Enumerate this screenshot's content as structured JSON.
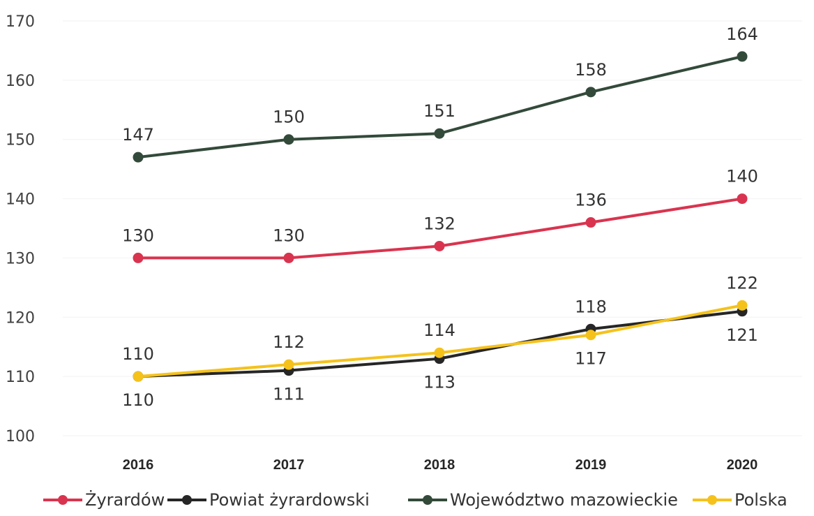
{
  "chart_data": {
    "type": "line",
    "title": "",
    "xlabel": "",
    "ylabel": "",
    "categories": [
      "2016",
      "2017",
      "2018",
      "2019",
      "2020"
    ],
    "ylim": [
      100,
      170
    ],
    "yticks": [
      100,
      110,
      120,
      130,
      140,
      150,
      160,
      170
    ],
    "grid": true,
    "legend_position": "bottom",
    "series": [
      {
        "name": "Żyrardów",
        "color": "#d9344f",
        "values": [
          130,
          130,
          132,
          136,
          140
        ],
        "labels": [
          "130",
          "130",
          "132",
          "136",
          "140"
        ],
        "label_position": "above"
      },
      {
        "name": "Powiat żyrardowski",
        "color": "#262626",
        "values": [
          110,
          111,
          113,
          118,
          121
        ],
        "labels": [
          "110",
          "111",
          "113",
          "118",
          "121"
        ],
        "label_position": "mixed"
      },
      {
        "name": "Województwo mazowieckie",
        "color": "#334a3a",
        "values": [
          147,
          150,
          151,
          158,
          164
        ],
        "labels": [
          "147",
          "150",
          "151",
          "158",
          "164"
        ],
        "label_position": "above"
      },
      {
        "name": "Polska",
        "color": "#f5c21b",
        "values": [
          110,
          112,
          114,
          117,
          122
        ],
        "labels": [
          "110",
          "112",
          "114",
          "117",
          "122"
        ],
        "label_position": "mixed"
      }
    ]
  }
}
